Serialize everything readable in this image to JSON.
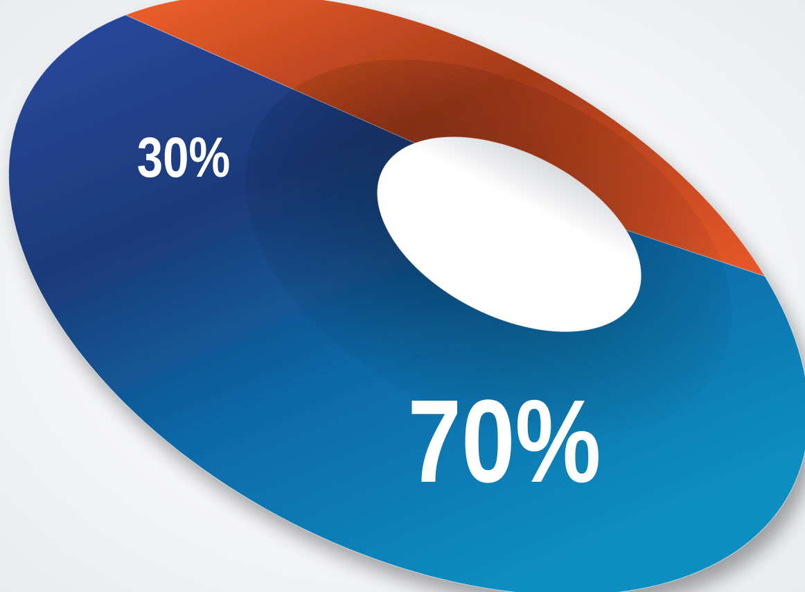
{
  "chart_data": {
    "type": "pie",
    "variant": "donut-3d",
    "title": "",
    "categories": [
      "",
      ""
    ],
    "values": [
      30,
      70
    ],
    "labels": [
      "30%",
      "70%"
    ],
    "colors": [
      "#e8582a",
      "#1f4f9e"
    ],
    "grid": false,
    "legend": "none"
  }
}
